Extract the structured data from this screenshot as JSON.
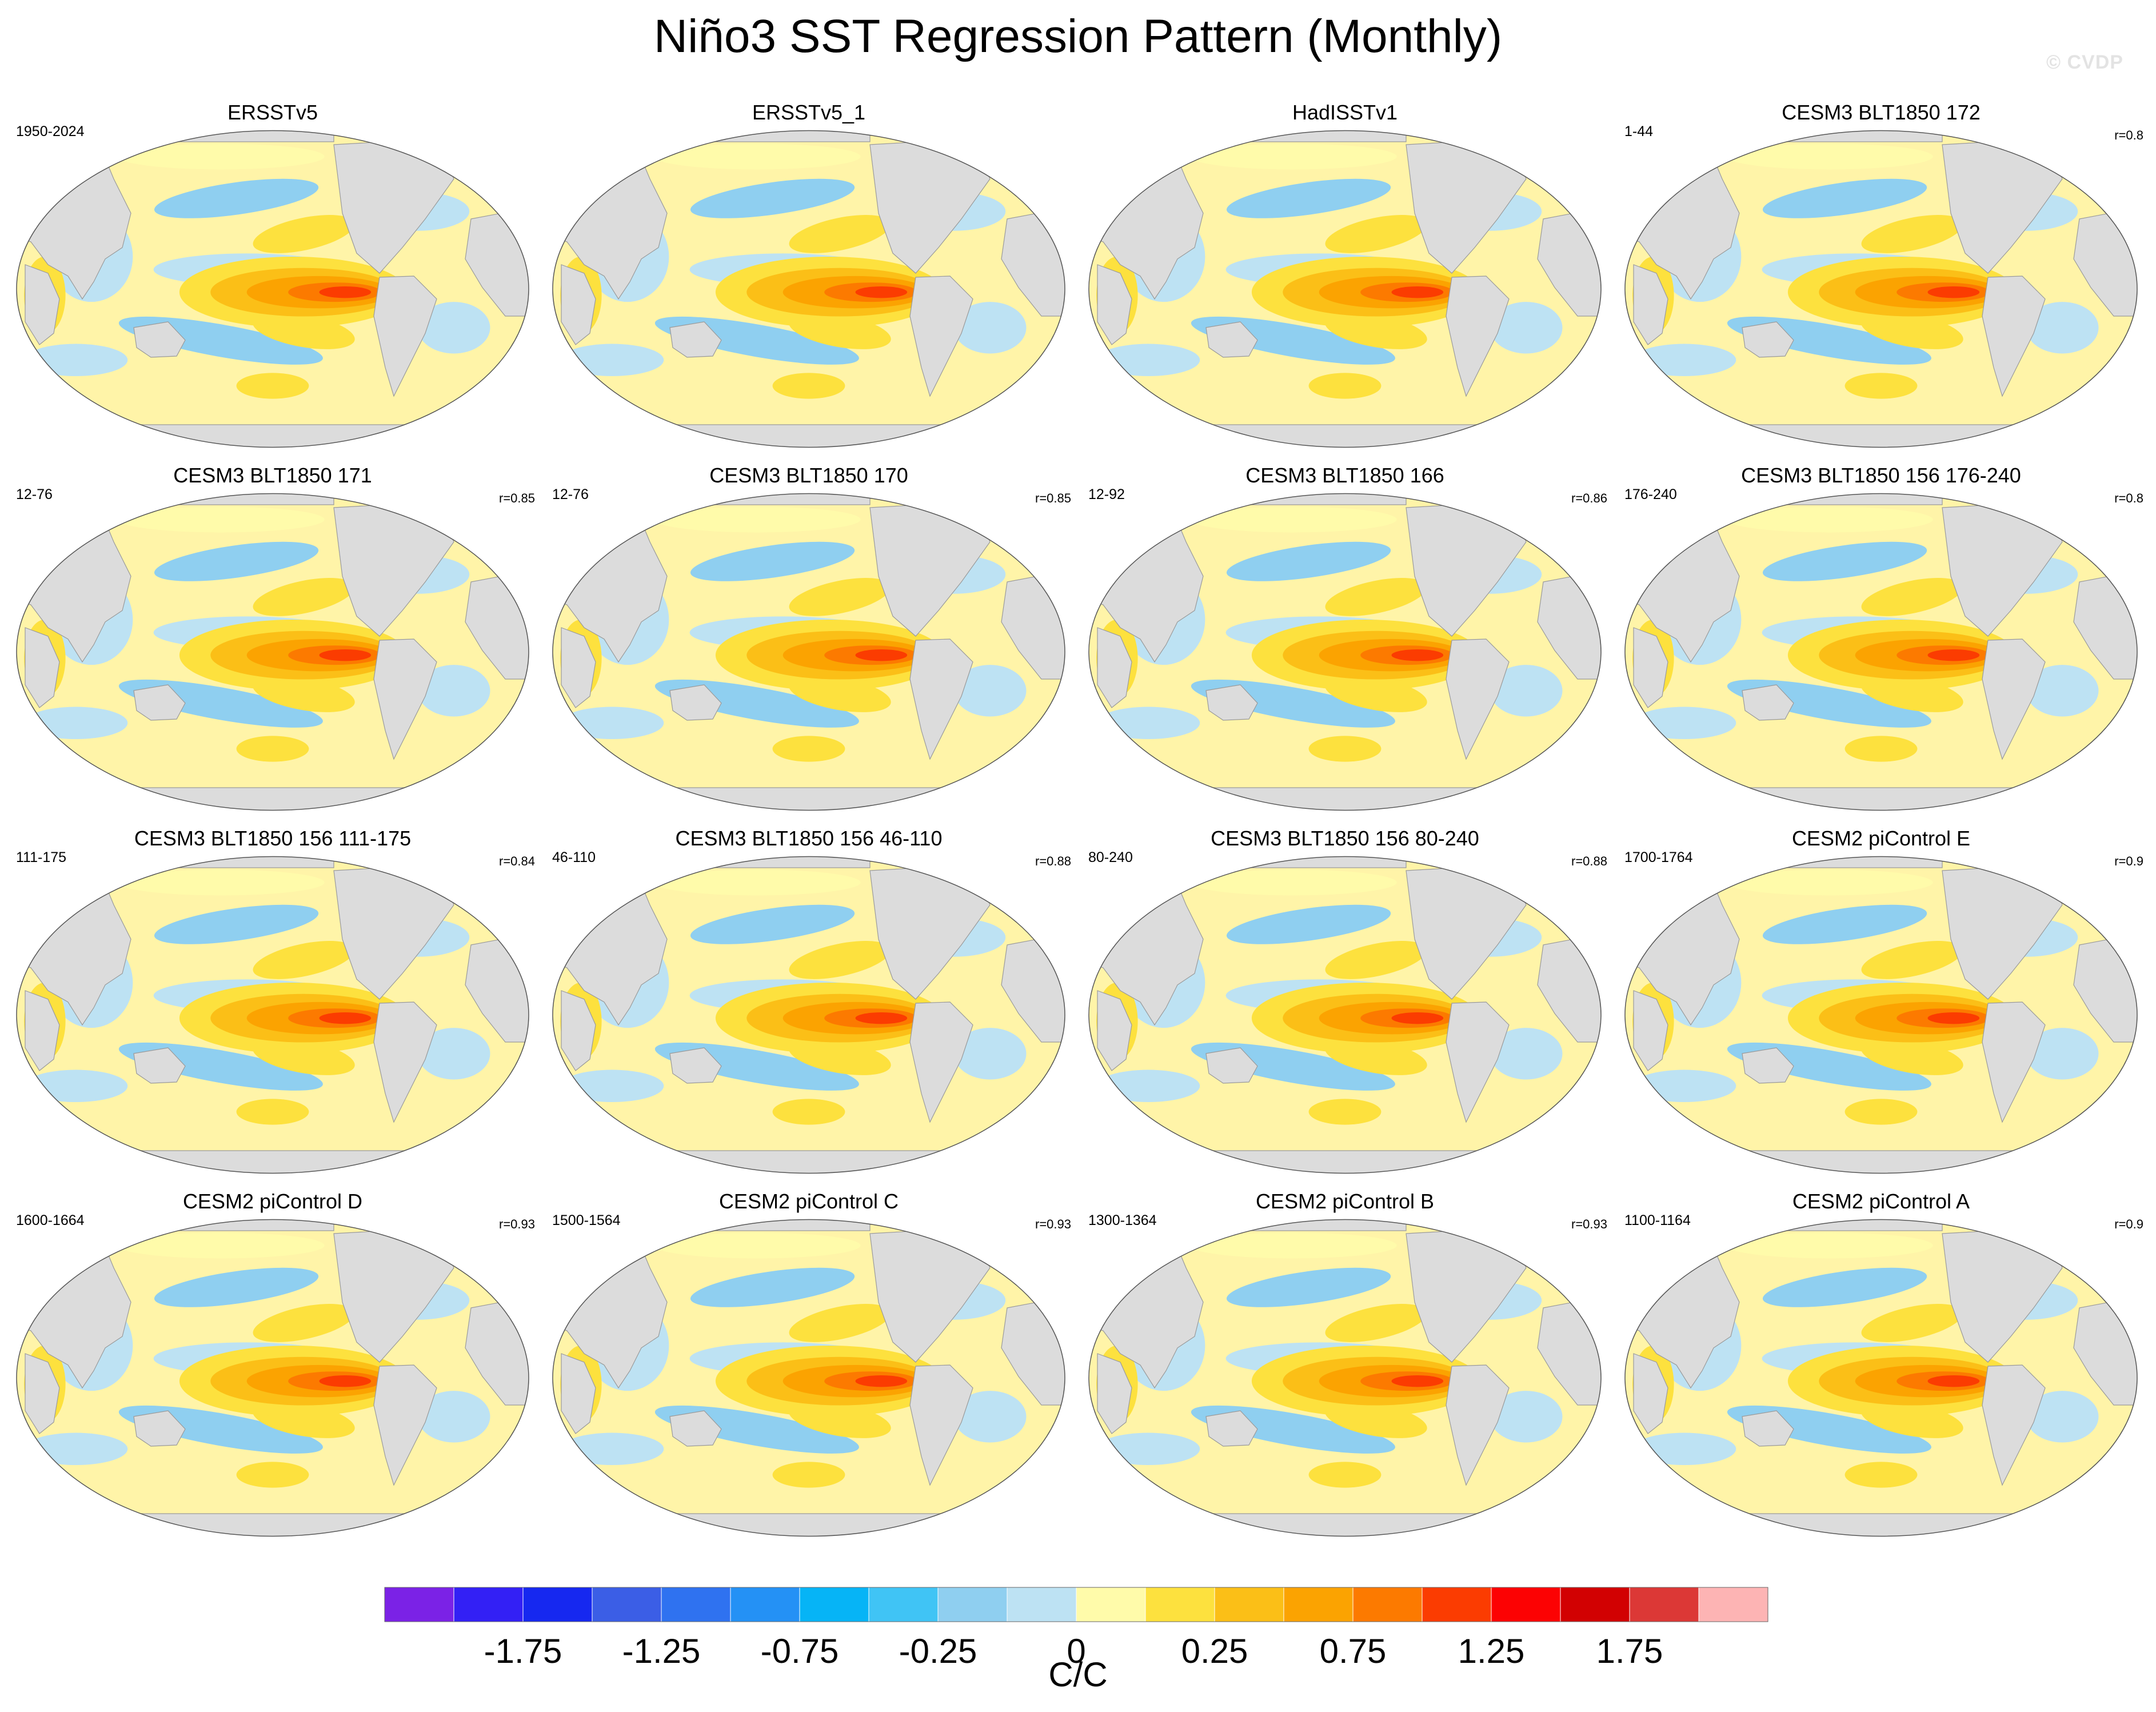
{
  "title": "Niño3 SST Regression Pattern (Monthly)",
  "watermark": "© CVDP",
  "chart_data": {
    "type": "heatmap",
    "projection": "global map (Robinson-like)",
    "panels": [
      {
        "title": "ERSSTv5",
        "years": "1950-2024",
        "r": ""
      },
      {
        "title": "ERSSTv5_1",
        "years": "",
        "r": ""
      },
      {
        "title": "HadISSTv1",
        "years": "",
        "r": ""
      },
      {
        "title": "CESM3 BLT1850 172",
        "years": "1-44",
        "r": "r=0.8"
      },
      {
        "title": "CESM3 BLT1850 171",
        "years": "12-76",
        "r": "r=0.85"
      },
      {
        "title": "CESM3 BLT1850 170",
        "years": "12-76",
        "r": "r=0.85"
      },
      {
        "title": "CESM3 BLT1850 166",
        "years": "12-92",
        "r": "r=0.86"
      },
      {
        "title": "CESM3 BLT1850 156 176-240",
        "years": "176-240",
        "r": "r=0.8"
      },
      {
        "title": "CESM3 BLT1850 156 111-175",
        "years": "111-175",
        "r": "r=0.84"
      },
      {
        "title": "CESM3 BLT1850 156 46-110",
        "years": "46-110",
        "r": "r=0.88"
      },
      {
        "title": "CESM3 BLT1850 156 80-240",
        "years": "80-240",
        "r": "r=0.88"
      },
      {
        "title": "CESM2 piControl E",
        "years": "1700-1764",
        "r": "r=0.9"
      },
      {
        "title": "CESM2 piControl D",
        "years": "1600-1664",
        "r": "r=0.93"
      },
      {
        "title": "CESM2 piControl C",
        "years": "1500-1564",
        "r": "r=0.93"
      },
      {
        "title": "CESM2 piControl B",
        "years": "1300-1364",
        "r": "r=0.93"
      },
      {
        "title": "CESM2 piControl A",
        "years": "1100-1164",
        "r": "r=0.9"
      }
    ],
    "colorbar": {
      "unit": "C/C",
      "tick_labels": [
        "-1.75",
        "-1.25",
        "-0.75",
        "-0.25",
        "0",
        "0.25",
        "0.75",
        "1.25",
        "1.75"
      ],
      "colors": [
        "#7b22e6",
        "#3320f5",
        "#1628f0",
        "#3b5ee6",
        "#2f72f0",
        "#2491f5",
        "#06b4f6",
        "#40c4f5",
        "#8fcff0",
        "#bde2f3",
        "#fffbaa",
        "#fde13e",
        "#fbbf17",
        "#fba301",
        "#fc7a00",
        "#fb3c01",
        "#fc0203",
        "#d20102",
        "#dc3836",
        "#fdb4b4"
      ]
    },
    "land_color": "#dcdcdc",
    "ocean_neutral_color": "#fff4a8"
  }
}
